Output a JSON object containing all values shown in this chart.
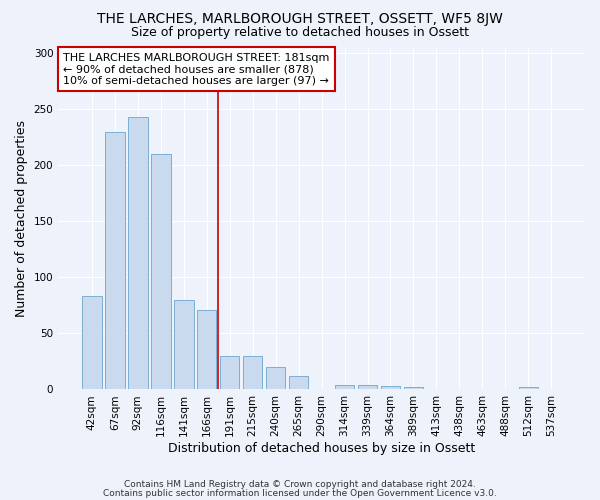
{
  "title": "THE LARCHES, MARLBOROUGH STREET, OSSETT, WF5 8JW",
  "subtitle": "Size of property relative to detached houses in Ossett",
  "xlabel": "Distribution of detached houses by size in Ossett",
  "ylabel": "Number of detached properties",
  "categories": [
    "42sqm",
    "67sqm",
    "92sqm",
    "116sqm",
    "141sqm",
    "166sqm",
    "191sqm",
    "215sqm",
    "240sqm",
    "265sqm",
    "290sqm",
    "314sqm",
    "339sqm",
    "364sqm",
    "389sqm",
    "413sqm",
    "438sqm",
    "463sqm",
    "488sqm",
    "512sqm",
    "537sqm"
  ],
  "values": [
    83,
    230,
    243,
    210,
    80,
    71,
    30,
    30,
    20,
    12,
    0,
    4,
    4,
    3,
    2,
    0,
    0,
    0,
    0,
    2,
    0
  ],
  "bar_color": "#c9d9ee",
  "bar_edge_color": "#7bafd4",
  "reference_line_color": "#cc0000",
  "annotation_text": "THE LARCHES MARLBOROUGH STREET: 181sqm\n← 90% of detached houses are smaller (878)\n10% of semi-detached houses are larger (97) →",
  "annotation_box_color": "#ffffff",
  "annotation_box_edge": "#cc0000",
  "ylim": [
    0,
    305
  ],
  "yticks": [
    0,
    50,
    100,
    150,
    200,
    250,
    300
  ],
  "footer_line1": "Contains HM Land Registry data © Crown copyright and database right 2024.",
  "footer_line2": "Contains public sector information licensed under the Open Government Licence v3.0.",
  "bg_color": "#eef2fa",
  "plot_bg_color": "#eef2fa",
  "grid_color": "#ffffff",
  "title_fontsize": 10,
  "subtitle_fontsize": 9,
  "axis_label_fontsize": 9,
  "tick_fontsize": 7.5,
  "annotation_fontsize": 8,
  "footer_fontsize": 6.5
}
